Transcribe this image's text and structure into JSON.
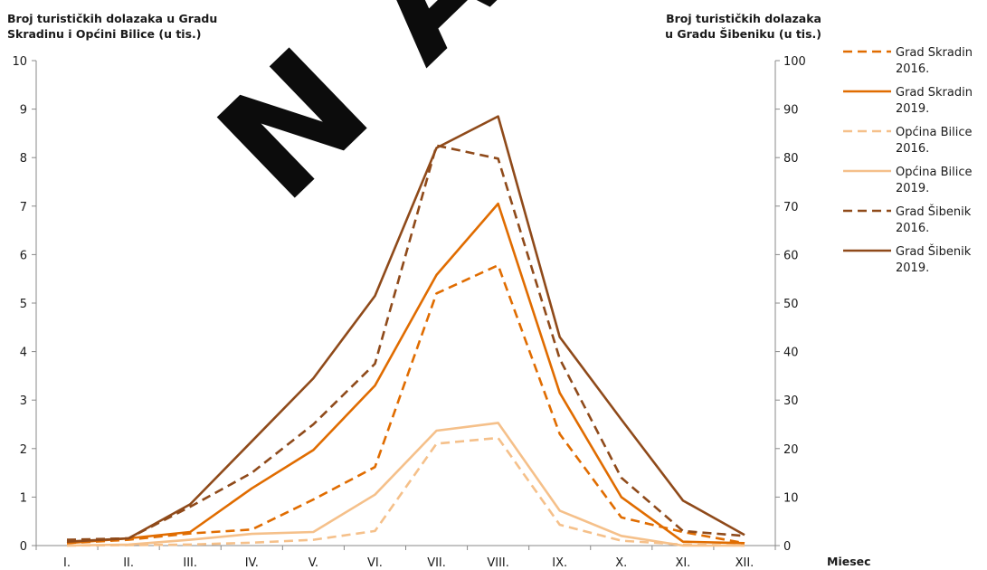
{
  "chart_data": {
    "type": "line",
    "watermark": "N A",
    "left_axis_title": [
      "Broj turističkih dolazaka u Gradu",
      "Skradinu i Općini Bilice (u tis.)"
    ],
    "right_axis_title": [
      "Broj turističkih dolazaka",
      "u Gradu Šibeniku (u tis.)"
    ],
    "xlabel": "Miesec",
    "categories": [
      "I.",
      "II.",
      "III.",
      "IV.",
      "V.",
      "VI.",
      "VII.",
      "VIII.",
      "IX.",
      "X.",
      "XI.",
      "XII."
    ],
    "y_left": {
      "min": 0,
      "max": 10,
      "ticks": [
        "0",
        "1",
        "2",
        "3",
        "4",
        "5",
        "6",
        "7",
        "8",
        "9",
        "10"
      ]
    },
    "y_right": {
      "min": 0,
      "max": 100,
      "ticks": [
        "0",
        "10",
        "20",
        "30",
        "40",
        "50",
        "60",
        "70",
        "80",
        "90",
        "100"
      ]
    },
    "series": [
      {
        "name": [
          "Grad Skradin",
          "2016."
        ],
        "color": "#e06c00",
        "dashed": true,
        "axis": "left",
        "values": [
          0.05,
          0.12,
          0.25,
          0.33,
          0.95,
          1.62,
          5.2,
          5.78,
          2.3,
          0.58,
          0.28,
          0.05
        ]
      },
      {
        "name": [
          "Grad Skradin",
          "2019."
        ],
        "color": "#e06c00",
        "dashed": false,
        "axis": "left",
        "values": [
          0.05,
          0.15,
          0.28,
          1.18,
          1.97,
          3.3,
          5.58,
          7.05,
          3.15,
          1.0,
          0.08,
          0.05
        ]
      },
      {
        "name": [
          "Općina Bilice",
          "2016."
        ],
        "color": "#f5c08a",
        "dashed": true,
        "axis": "left",
        "values": [
          0.0,
          0.01,
          0.02,
          0.06,
          0.12,
          0.3,
          2.1,
          2.22,
          0.43,
          0.1,
          0.02,
          0.0
        ]
      },
      {
        "name": [
          "Općina Bilice",
          "2019."
        ],
        "color": "#f5c08a",
        "dashed": false,
        "axis": "left",
        "values": [
          0.0,
          0.02,
          0.12,
          0.24,
          0.28,
          1.05,
          2.37,
          2.53,
          0.72,
          0.2,
          0.0,
          0.0
        ]
      },
      {
        "name": [
          "Grad Šibenik",
          "2016."
        ],
        "color": "#8f4a1a",
        "dashed": true,
        "axis": "right",
        "values": [
          1.2,
          1.5,
          8.0,
          15.0,
          25.0,
          37.5,
          82.5,
          79.8,
          38.5,
          14.0,
          3.0,
          2.0
        ]
      },
      {
        "name": [
          "Grad Šibenik",
          "2019."
        ],
        "color": "#8f4a1a",
        "dashed": false,
        "axis": "right",
        "values": [
          0.8,
          1.5,
          8.5,
          21.5,
          34.5,
          51.5,
          82.0,
          88.5,
          43.0,
          26.0,
          9.3,
          2.2
        ]
      }
    ]
  }
}
